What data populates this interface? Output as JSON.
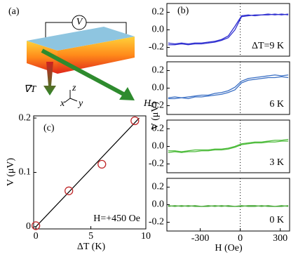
{
  "diagram": {
    "label": "(a)",
    "voltage": "V",
    "gradient": "∇T",
    "field": "H",
    "axes": [
      "x",
      "z",
      "y"
    ]
  },
  "chart_data": [
    {
      "type": "scatter",
      "label": "(c)",
      "annotation": "H=+450 Oe",
      "xlabel": "ΔT (K)",
      "ylabel": "V (μV)",
      "points": {
        "x": [
          0,
          3,
          6,
          9
        ],
        "values": [
          0.002,
          0.066,
          0.115,
          0.195
        ],
        "color": "#c0282a"
      },
      "fit": {
        "x": [
          0,
          9.4
        ],
        "values": [
          0,
          0.2
        ],
        "color": "#000000"
      },
      "xlim": [
        -0.2,
        10
      ],
      "ylim": [
        -0.004,
        0.204
      ],
      "xticks": [
        0,
        5,
        10
      ],
      "yticks": [
        0,
        0.1,
        0.2
      ]
    },
    {
      "type": "line",
      "label": "(b)",
      "annotation": "ΔT=9 K",
      "x": [
        -540,
        -490,
        -440,
        -390,
        -340,
        -290,
        -240,
        -190,
        -140,
        -90,
        -40,
        10,
        60,
        110,
        160,
        210,
        260,
        310,
        360
      ],
      "series": [
        {
          "color": "#2f2fd0",
          "values": [
            -0.17,
            -0.17,
            -0.16,
            -0.17,
            -0.16,
            -0.16,
            -0.15,
            -0.14,
            -0.12,
            -0.09,
            0.0,
            0.15,
            0.16,
            0.17,
            0.17,
            0.17,
            0.18,
            0.17,
            0.18
          ]
        },
        {
          "color": "#2f2fd0",
          "values": [
            -0.15,
            -0.16,
            -0.15,
            -0.16,
            -0.15,
            -0.15,
            -0.14,
            -0.13,
            -0.11,
            -0.07,
            0.04,
            0.16,
            0.17,
            0.16,
            0.17,
            0.18,
            0.17,
            0.18,
            0.17
          ]
        }
      ],
      "xlim": [
        -550,
        370
      ],
      "ylim": [
        -0.3,
        0.3
      ],
      "yticks": [
        -0.2,
        {
          "value": 0,
          "label": "0.0"
        },
        0.2
      ]
    },
    {
      "type": "line",
      "annotation": "6 K",
      "ylabel": "V (μV)",
      "x": [
        -540,
        -490,
        -440,
        -390,
        -340,
        -290,
        -240,
        -190,
        -140,
        -90,
        -40,
        10,
        60,
        110,
        160,
        210,
        260,
        310,
        360
      ],
      "series": [
        {
          "color": "#3a6fc4",
          "values": [
            -0.12,
            -0.12,
            -0.11,
            -0.12,
            -0.1,
            -0.1,
            -0.09,
            -0.08,
            -0.07,
            -0.05,
            -0.02,
            0.06,
            0.09,
            0.1,
            0.11,
            0.12,
            0.12,
            0.13,
            0.12
          ]
        },
        {
          "color": "#3a6fc4",
          "values": [
            -0.11,
            -0.1,
            -0.11,
            -0.1,
            -0.09,
            -0.08,
            -0.08,
            -0.06,
            -0.05,
            -0.03,
            0.01,
            0.08,
            0.11,
            0.12,
            0.13,
            0.14,
            0.15,
            0.14,
            0.15
          ]
        }
      ],
      "xlim": [
        -550,
        370
      ],
      "ylim": [
        -0.3,
        0.3
      ],
      "yticks": [
        -0.2,
        {
          "value": 0,
          "label": "0.0"
        },
        0.2
      ]
    },
    {
      "type": "line",
      "annotation": "3 K",
      "x": [
        -540,
        -490,
        -440,
        -390,
        -340,
        -290,
        -240,
        -190,
        -140,
        -90,
        -40,
        10,
        60,
        110,
        160,
        210,
        260,
        310,
        360
      ],
      "series": [
        {
          "color": "#4cbb3a",
          "values": [
            -0.07,
            -0.06,
            -0.07,
            -0.06,
            -0.06,
            -0.05,
            -0.05,
            -0.04,
            -0.04,
            -0.03,
            -0.01,
            0.02,
            0.03,
            0.04,
            0.04,
            0.05,
            0.05,
            0.06,
            0.06
          ]
        },
        {
          "color": "#4cbb3a",
          "values": [
            -0.05,
            -0.05,
            -0.06,
            -0.05,
            -0.04,
            -0.04,
            -0.04,
            -0.03,
            -0.03,
            -0.02,
            0.0,
            0.03,
            0.04,
            0.05,
            0.05,
            0.06,
            0.07,
            0.07,
            0.08
          ]
        }
      ],
      "xlim": [
        -550,
        370
      ],
      "ylim": [
        -0.3,
        0.3
      ],
      "yticks": [
        -0.2,
        {
          "value": 0,
          "label": "0.0"
        },
        0.2
      ]
    },
    {
      "type": "line",
      "annotation": "0 K",
      "xlabel": "H (Oe)",
      "x": [
        -540,
        -490,
        -440,
        -390,
        -340,
        -290,
        -240,
        -190,
        -140,
        -90,
        -40,
        10,
        60,
        110,
        160,
        210,
        260,
        310,
        360
      ],
      "series": [
        {
          "color": "#4caa3c",
          "values": [
            -0.02,
            -0.01,
            -0.02,
            -0.01,
            -0.02,
            -0.02,
            -0.01,
            -0.02,
            -0.01,
            -0.02,
            -0.02,
            -0.01,
            -0.02,
            -0.02,
            -0.01,
            -0.02,
            -0.02,
            -0.01,
            -0.02
          ]
        },
        {
          "color": "#4caa3c",
          "values": [
            -0.01,
            -0.02,
            -0.01,
            -0.02,
            -0.01,
            -0.02,
            -0.02,
            -0.01,
            -0.02,
            -0.01,
            -0.02,
            -0.02,
            -0.01,
            -0.01,
            -0.02,
            -0.01,
            -0.02,
            -0.02,
            -0.01
          ]
        }
      ],
      "xlim": [
        -550,
        370
      ],
      "ylim": [
        -0.3,
        0.3
      ],
      "xticks": [
        -300,
        0,
        300
      ],
      "yticks": [
        -0.2,
        {
          "value": 0,
          "label": "0.0"
        },
        0.2
      ]
    }
  ]
}
